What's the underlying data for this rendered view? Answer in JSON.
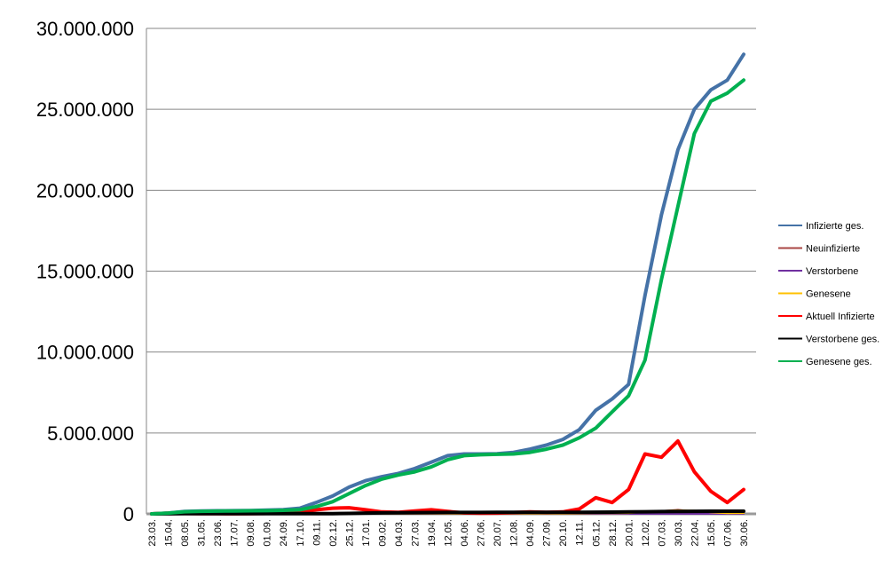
{
  "chart_data": {
    "type": "line",
    "title": "",
    "xlabel": "",
    "ylabel": "",
    "ylim": [
      0,
      30000000
    ],
    "y_ticks": [
      "0",
      "5.000.000",
      "10.000.000",
      "15.000.000",
      "20.000.000",
      "25.000.000",
      "30.000.000"
    ],
    "y_tick_values": [
      0,
      5000000,
      10000000,
      15000000,
      20000000,
      25000000,
      30000000
    ],
    "x_tick_labels": [
      "23.03.",
      "15.04.",
      "08.05.",
      "31.05.",
      "23.06.",
      "17.07.",
      "09.08.",
      "01.09.",
      "24.09.",
      "17.10.",
      "09.11.",
      "02.12.",
      "25.12.",
      "17.01.",
      "09.02.",
      "04.03.",
      "27.03.",
      "19.04.",
      "12.05.",
      "04.06.",
      "27.06.",
      "20.07.",
      "12.08.",
      "04.09.",
      "27.09.",
      "20.10.",
      "12.11.",
      "05.12.",
      "28.12.",
      "20.01.",
      "12.02.",
      "07.03.",
      "30.03.",
      "22.04.",
      "15.05.",
      "07.06.",
      "30.06."
    ],
    "grid": true,
    "legend_position": "right",
    "series": [
      {
        "name": "Infizierte ges.",
        "color": "#4572A7",
        "values": [
          0,
          50000,
          150000,
          180000,
          190000,
          200000,
          210000,
          230000,
          260000,
          350000,
          700000,
          1100000,
          1650000,
          2050000,
          2300000,
          2500000,
          2800000,
          3200000,
          3600000,
          3700000,
          3700000,
          3720000,
          3800000,
          4000000,
          4250000,
          4600000,
          5200000,
          6400000,
          7100000,
          8000000,
          13500000,
          18500000,
          22500000,
          25000000,
          26200000,
          26800000,
          28400000
        ]
      },
      {
        "name": "Neuinfizierte",
        "color": "#AA4643",
        "values": [
          0,
          2000,
          1000,
          800,
          500,
          600,
          1500,
          2500,
          5000,
          15000,
          25000,
          25000,
          25000,
          15000,
          10000,
          10000,
          18000,
          20000,
          10000,
          5000,
          4000,
          8000,
          12000,
          12000,
          10000,
          12000,
          30000,
          50000,
          40000,
          60000,
          150000,
          180000,
          250000,
          150000,
          60000,
          20000,
          80000
        ]
      },
      {
        "name": "Verstorbene",
        "color": "#7030A0",
        "values": [
          0,
          200,
          200,
          100,
          50,
          20,
          20,
          30,
          50,
          100,
          300,
          500,
          600,
          500,
          300,
          150,
          200,
          200,
          150,
          50,
          30,
          40,
          50,
          60,
          60,
          80,
          150,
          300,
          300,
          300,
          250,
          150,
          100,
          100,
          60,
          30,
          30
        ]
      },
      {
        "name": "Genesene",
        "color": "#FFC000",
        "values": [
          0,
          1500,
          1500,
          1000,
          500,
          500,
          1000,
          2000,
          4000,
          10000,
          20000,
          25000,
          25000,
          20000,
          12000,
          10000,
          15000,
          18000,
          15000,
          8000,
          5000,
          6000,
          10000,
          10000,
          10000,
          10000,
          20000,
          40000,
          45000,
          50000,
          120000,
          180000,
          220000,
          200000,
          100000,
          40000,
          50000
        ]
      },
      {
        "name": "Aktuell Infizierte",
        "color": "#FF0000",
        "values": [
          0,
          40000,
          30000,
          15000,
          10000,
          8000,
          15000,
          30000,
          60000,
          100000,
          250000,
          350000,
          380000,
          250000,
          120000,
          100000,
          180000,
          250000,
          150000,
          60000,
          40000,
          50000,
          80000,
          120000,
          100000,
          120000,
          300000,
          1000000,
          700000,
          1500000,
          3700000,
          3500000,
          4500000,
          2600000,
          1400000,
          700000,
          1500000
        ]
      },
      {
        "name": "Verstorbene ges.",
        "color": "#000000",
        "values": [
          0,
          7000,
          8500,
          9000,
          9100,
          9200,
          9300,
          9400,
          9500,
          10000,
          13000,
          19000,
          28000,
          48000,
          63000,
          71000,
          75000,
          82000,
          86000,
          88500,
          89500,
          90500,
          91500,
          92500,
          94000,
          95000,
          98000,
          104000,
          112000,
          120000,
          130000,
          140000,
          150000,
          158000,
          162000,
          164000,
          165000
        ]
      },
      {
        "name": "Genesene ges.",
        "color": "#00B050",
        "values": [
          0,
          50000,
          130000,
          160000,
          170000,
          180000,
          190000,
          200000,
          220000,
          250000,
          450000,
          750000,
          1250000,
          1750000,
          2150000,
          2400000,
          2600000,
          2900000,
          3350000,
          3600000,
          3650000,
          3680000,
          3700000,
          3800000,
          4000000,
          4250000,
          4700000,
          5300000,
          6300000,
          7300000,
          9500000,
          14500000,
          19000000,
          23500000,
          25500000,
          26000000,
          26800000
        ]
      }
    ]
  }
}
